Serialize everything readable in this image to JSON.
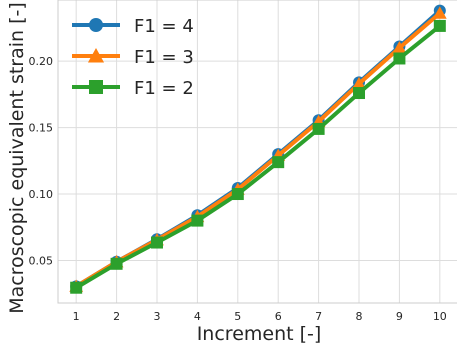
{
  "chart_data": {
    "type": "line",
    "title": "",
    "xlabel": "Increment [-]",
    "ylabel": "Macroscopic equivalent strain [-]",
    "x": [
      1,
      2,
      3,
      4,
      5,
      6,
      7,
      8,
      9,
      10
    ],
    "x_ticks": [
      "1",
      "2",
      "3",
      "4",
      "5",
      "6",
      "7",
      "8",
      "9",
      "10"
    ],
    "y_ticks": [
      "0.05",
      "0.10",
      "0.15",
      "0.20"
    ],
    "xlim": [
      0.55,
      10.45
    ],
    "ylim": [
      0.018,
      0.246
    ],
    "grid": true,
    "legend_position": "top-left",
    "series": [
      {
        "name": "F1 = 4",
        "color": "#1f77b4",
        "marker": "circle",
        "values": [
          0.0305,
          0.049,
          0.066,
          0.084,
          0.1045,
          0.13,
          0.1555,
          0.184,
          0.211,
          0.238
        ]
      },
      {
        "name": "F1 = 3",
        "color": "#ff7f0e",
        "marker": "triangle",
        "values": [
          0.0305,
          0.049,
          0.0655,
          0.083,
          0.1035,
          0.129,
          0.1545,
          0.183,
          0.21,
          0.236
        ]
      },
      {
        "name": "F1 = 2",
        "color": "#2ca02c",
        "marker": "square",
        "values": [
          0.0295,
          0.0475,
          0.0635,
          0.08,
          0.1,
          0.124,
          0.149,
          0.176,
          0.202,
          0.2265
        ]
      }
    ]
  }
}
